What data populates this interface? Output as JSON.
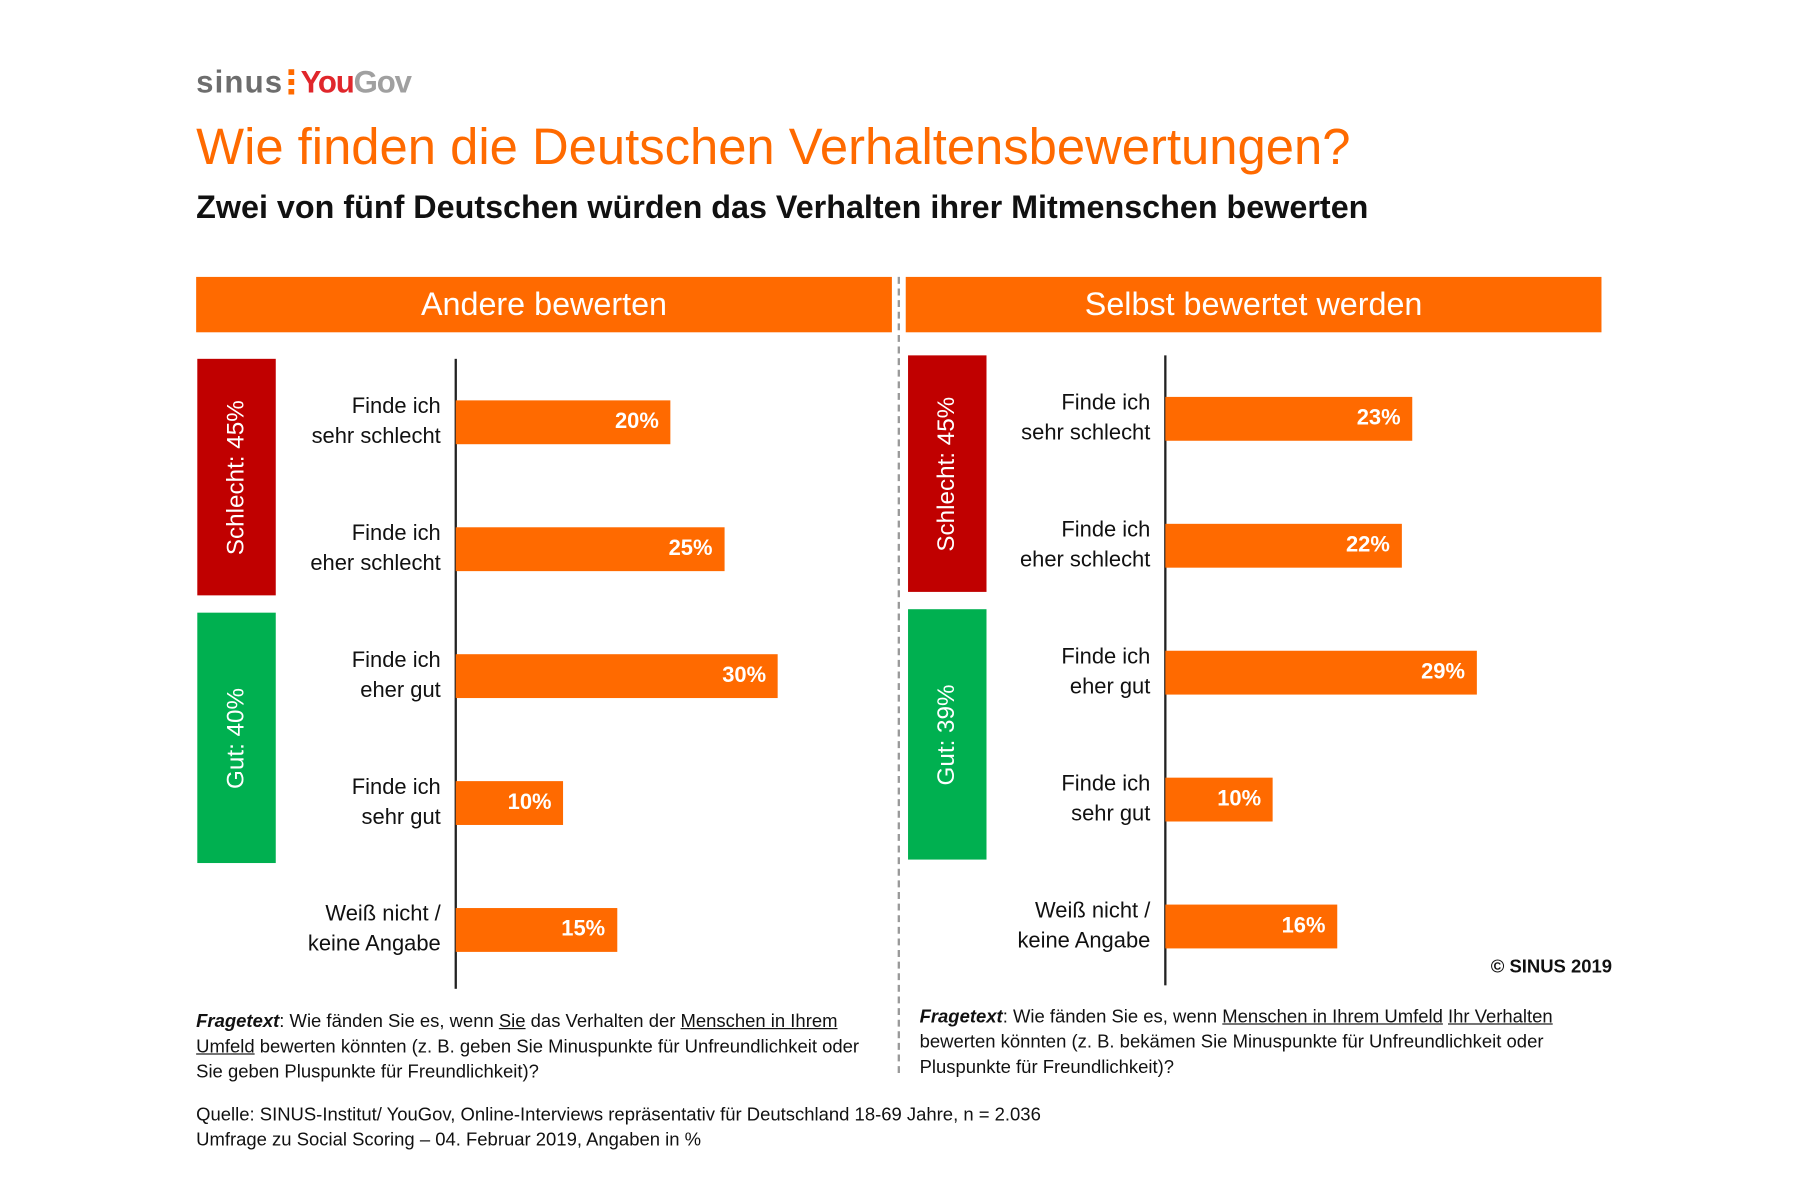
{
  "logo": {
    "sinus": "sinus",
    "you": "You",
    "gov": "Gov"
  },
  "title": "Wie finden die Deutschen Verhaltensbewertungen?",
  "subtitle": "Zwei von fünf Deutschen würden das Verhalten ihrer Mitmenschen bewerten",
  "colors": {
    "accent": "#ff6a00",
    "bad": "#c00000",
    "good": "#00b050"
  },
  "chart_data": [
    {
      "type": "bar",
      "title": "Andere bewerten",
      "categories": [
        "Finde ich sehr schlecht",
        "Finde ich eher schlecht",
        "Finde ich eher gut",
        "Finde ich sehr gut",
        "Weiß nicht / keine Angabe"
      ],
      "category_lines": [
        [
          "Finde ich",
          "sehr schlecht"
        ],
        [
          "Finde ich",
          "eher schlecht"
        ],
        [
          "Finde ich",
          "eher gut"
        ],
        [
          "Finde ich",
          "sehr gut"
        ],
        [
          "Weiß nicht /",
          "keine Angabe"
        ]
      ],
      "values": [
        20,
        25,
        30,
        10,
        15
      ],
      "labels": [
        "20%",
        "25%",
        "30%",
        "10%",
        "15%"
      ],
      "groups": [
        {
          "label": "Schlecht: 45%",
          "color": "#c00000"
        },
        {
          "label": "Gut: 40%",
          "color": "#00b050"
        }
      ]
    },
    {
      "type": "bar",
      "title": "Selbst bewertet werden",
      "categories": [
        "Finde ich sehr schlecht",
        "Finde ich eher schlecht",
        "Finde ich eher gut",
        "Finde ich sehr gut",
        "Weiß nicht / keine Angabe"
      ],
      "category_lines": [
        [
          "Finde ich",
          "sehr schlecht"
        ],
        [
          "Finde ich",
          "eher schlecht"
        ],
        [
          "Finde ich",
          "eher gut"
        ],
        [
          "Finde ich",
          "sehr gut"
        ],
        [
          "Weiß nicht /",
          "keine Angabe"
        ]
      ],
      "values": [
        23,
        22,
        29,
        10,
        16
      ],
      "labels": [
        "23%",
        "22%",
        "29%",
        "10%",
        "16%"
      ],
      "groups": [
        {
          "label": "Schlecht: 45%",
          "color": "#c00000"
        },
        {
          "label": "Gut: 39%",
          "color": "#00b050"
        }
      ]
    }
  ],
  "notes": {
    "left": {
      "label": "Fragetext",
      "t1": ": Wie fänden Sie es, wenn ",
      "u1": "Sie",
      "t2": " das Verhalten der ",
      "u2": "Menschen in Ihrem Umfeld",
      "t3": " bewerten könnten (z. B. geben Sie Minuspunkte für Unfreundlichkeit oder Sie geben Pluspunkte für Freundlichkeit)?"
    },
    "right": {
      "label": "Fragetext",
      "t1": ": Wie fänden Sie es, wenn ",
      "u1": "Menschen in Ihrem Umfeld",
      "t2": " ",
      "u2": "Ihr Verhalten",
      "t3": " bewerten könnten (z. B. bekämen Sie Minuspunkte für Unfreundlichkeit oder Pluspunkte für Freundlichkeit)?"
    }
  },
  "copyright": "© SINUS 2019",
  "source": {
    "line1": "Quelle: SINUS-Institut/ YouGov, Online-Interviews repräsentativ für Deutschland 18-69 Jahre, n = 2.036",
    "line2": "Umfrage zu Social Scoring – 04. Februar 2019, Angaben in %"
  }
}
